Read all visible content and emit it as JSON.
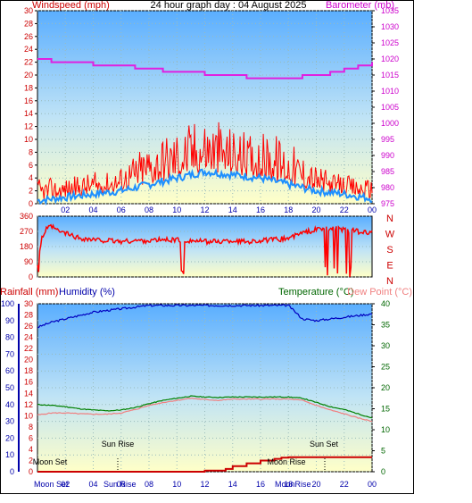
{
  "header": {
    "left_label": "Windspeed (mph)",
    "title": "24 hour graph day : 04 August 2025",
    "right_label": "Barometer (mb)"
  },
  "direction_labels": [
    "N",
    "W",
    "S",
    "E",
    "N"
  ],
  "lower_header": {
    "rain_label": "Rainfall (mm)",
    "hum_label": "Humidity (%)",
    "temp_label": "Temperature (°C)",
    "dew_label": "Dew Point (°C)"
  },
  "annotations": {
    "sun_rise": "Sun Rise",
    "sun_set": "Sun Set",
    "moon_set": "Moon Set",
    "moon_rise": "Moon Rise"
  },
  "bottom_axis_text": {
    "moonset_label": "Moon Set",
    "sunrise_label": "Sun Rise",
    "moonrise_label": "MoonRise"
  },
  "colors": {
    "wind": "#ff0000",
    "wind_avg": "#1e90ff",
    "barometer": "#e020e0",
    "direction": "#ff0000",
    "humidity": "#0000c0",
    "temperature": "#008000",
    "dewpoint": "#f08080",
    "rain": "#cc0000",
    "axis_left": "#cc0000",
    "axis_blue": "#0000aa",
    "axis_green": "#006600",
    "grad_top": "#5aaeff",
    "grad_bottom": "#ffffc8"
  },
  "chart_data": [
    {
      "type": "line",
      "name": "wind",
      "x_ticks": [
        "02",
        "04",
        "06",
        "08",
        "10",
        "12",
        "14",
        "16",
        "18",
        "20",
        "22",
        "00"
      ],
      "ylim_left": [
        0,
        30
      ],
      "y_ticks_left": [
        0,
        2,
        4,
        6,
        8,
        10,
        12,
        14,
        16,
        18,
        20,
        22,
        24,
        26,
        28,
        30
      ],
      "ylim_right": [
        975,
        1035
      ],
      "y_ticks_right": [
        975,
        980,
        985,
        990,
        995,
        1000,
        1005,
        1010,
        1015,
        1020,
        1025,
        1030,
        1035
      ],
      "gust_envelope_x": [
        0,
        1,
        2,
        3,
        4,
        5,
        6,
        7,
        8,
        9,
        10,
        11,
        12,
        13,
        14,
        15,
        16,
        17,
        18,
        19,
        20,
        21,
        22,
        23,
        24
      ],
      "gust_envelope_y": [
        4,
        4,
        4,
        4.5,
        5,
        5,
        6,
        8,
        10,
        11,
        12,
        13,
        14,
        13,
        12,
        11,
        11,
        11,
        10,
        8,
        6,
        5,
        4.5,
        4,
        4
      ],
      "average_x": [
        0,
        2,
        4,
        6,
        8,
        10,
        12,
        14,
        16,
        18,
        20,
        22,
        24
      ],
      "average_y": [
        0.5,
        1,
        1.5,
        2,
        3,
        4,
        5,
        4.5,
        4,
        3,
        2,
        1.5,
        0.8
      ],
      "barometer_x": [
        0,
        1,
        2,
        3,
        4,
        5,
        6,
        7,
        8,
        9,
        10,
        11,
        12,
        13,
        14,
        15,
        16,
        17,
        18,
        19,
        20,
        21,
        22,
        23,
        24
      ],
      "barometer_y": [
        1020,
        1019,
        1019,
        1019,
        1018,
        1018,
        1018,
        1017,
        1017,
        1016,
        1016,
        1016,
        1015,
        1015,
        1015,
        1014,
        1014,
        1014,
        1014,
        1015,
        1015,
        1016,
        1017,
        1018,
        1019
      ]
    },
    {
      "type": "line",
      "name": "direction",
      "ylim": [
        0,
        360
      ],
      "y_ticks": [
        0,
        90,
        180,
        270,
        360
      ],
      "x": [
        0,
        0.3,
        0.6,
        1,
        1.5,
        2,
        3,
        4,
        5,
        6,
        7,
        8,
        9,
        10,
        11,
        12,
        13,
        14,
        15,
        16,
        17,
        18,
        19,
        20,
        21,
        22,
        23,
        24
      ],
      "y": [
        80,
        230,
        280,
        300,
        270,
        260,
        230,
        220,
        215,
        210,
        215,
        215,
        220,
        220,
        215,
        210,
        210,
        215,
        210,
        215,
        220,
        230,
        260,
        280,
        290,
        280,
        270,
        260
      ]
    },
    {
      "type": "line",
      "name": "rain-humidity-temperature",
      "ylim_rain": [
        0,
        30
      ],
      "y_ticks_rain": [
        0,
        2,
        4,
        6,
        8,
        10,
        12,
        14,
        16,
        18,
        20,
        22,
        24,
        26,
        28,
        30
      ],
      "ylim_humidity": [
        0,
        100
      ],
      "y_ticks_humidity": [
        0,
        10,
        20,
        30,
        40,
        50,
        60,
        70,
        80,
        90,
        100
      ],
      "ylim_temp": [
        0,
        40
      ],
      "y_ticks_temp": [
        0,
        5,
        10,
        15,
        20,
        25,
        30,
        35,
        40
      ],
      "humidity_x": [
        0,
        1,
        2,
        3,
        4,
        5,
        6,
        7,
        8,
        9,
        10,
        11,
        12,
        13,
        14,
        15,
        16,
        17,
        18,
        19,
        20,
        21,
        22,
        23,
        24
      ],
      "humidity_y": [
        86,
        89,
        91,
        93,
        95,
        96,
        97,
        98,
        99,
        99,
        99,
        99,
        99,
        99,
        99,
        99,
        99,
        99,
        99,
        91,
        90,
        91,
        92,
        93,
        94
      ],
      "temperature_x": [
        0,
        1,
        2,
        3,
        4,
        5,
        6,
        7,
        8,
        9,
        10,
        11,
        12,
        13,
        14,
        15,
        16,
        17,
        18,
        19,
        20,
        21,
        22,
        23,
        24
      ],
      "temperature_y": [
        16,
        15.8,
        15.5,
        15,
        14.7,
        14.5,
        14.7,
        15.3,
        16.2,
        17,
        17.5,
        18,
        17.8,
        17.7,
        17.8,
        17.8,
        17.8,
        17.8,
        17.8,
        17.5,
        16.5,
        15.5,
        14.8,
        13.8,
        12.8
      ],
      "dewpoint_x": [
        0,
        1,
        2,
        3,
        4,
        5,
        6,
        7,
        8,
        9,
        10,
        11,
        12,
        13,
        14,
        15,
        16,
        17,
        18,
        19,
        20,
        21,
        22,
        23,
        24
      ],
      "dewpoint_y": [
        13.5,
        14,
        14,
        13.8,
        13.7,
        13.7,
        14,
        14.8,
        15.8,
        16.5,
        17,
        17.5,
        17.2,
        17,
        17.3,
        17.3,
        17.3,
        17.3,
        17.3,
        17,
        15.8,
        14.7,
        13.8,
        12.8,
        12
      ],
      "rain_x": [
        0,
        11.5,
        12,
        13.5,
        14,
        15,
        16,
        17,
        17.5,
        18,
        24
      ],
      "rain_y": [
        0,
        0,
        0.2,
        0.5,
        1,
        1.5,
        2,
        2.3,
        2.5,
        2.6,
        2.6
      ]
    }
  ]
}
